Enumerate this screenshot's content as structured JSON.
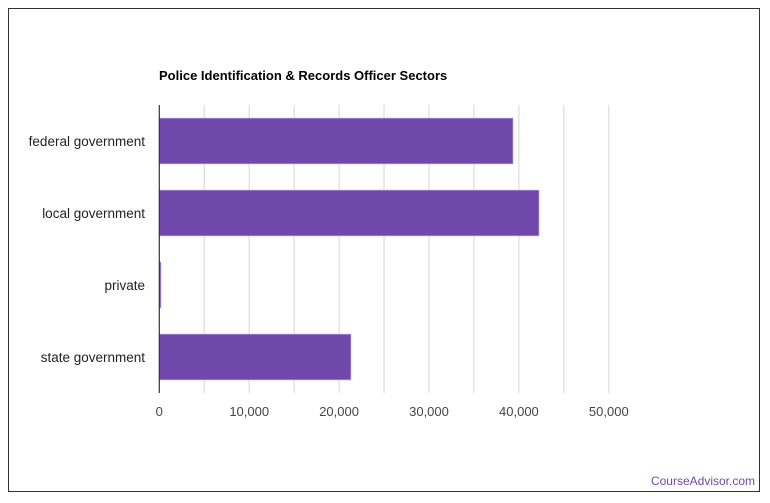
{
  "chart_data": {
    "type": "bar",
    "orientation": "horizontal",
    "title": "Police Identification & Records Officer Sectors",
    "categories": [
      "federal government",
      "local government",
      "private",
      "state government"
    ],
    "values": [
      39330,
      42220,
      150,
      21300
    ],
    "xlim": [
      0,
      50000
    ],
    "xticks": [
      0,
      10000,
      20000,
      30000,
      40000,
      50000
    ],
    "xtick_labels": [
      "0",
      "10,000",
      "20,000",
      "30,000",
      "40,000",
      "50,000"
    ],
    "grid": true,
    "bar_color": "#7048ac"
  },
  "credit": "CourseAdvisor.com"
}
